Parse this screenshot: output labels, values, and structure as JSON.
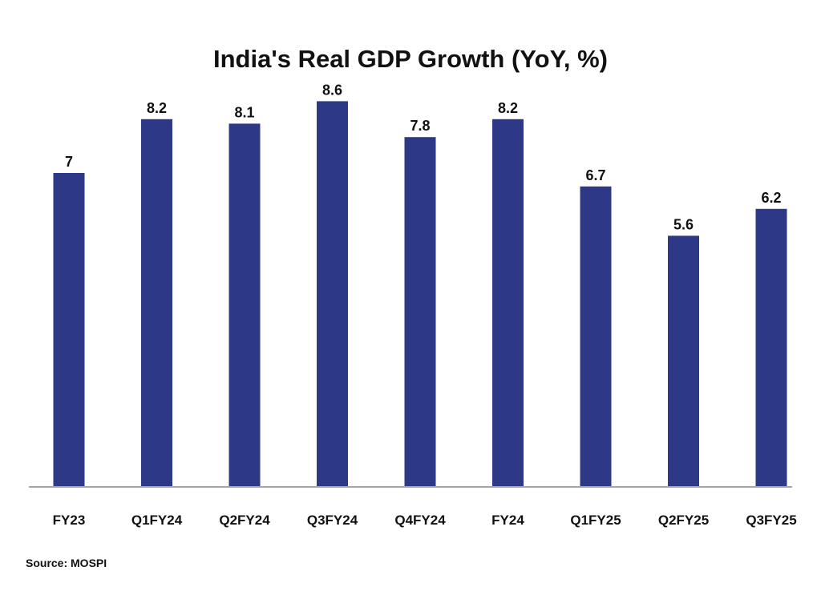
{
  "chart_data": {
    "type": "bar",
    "title": "India's Real GDP Growth (YoY, %)",
    "categories": [
      "FY23",
      "Q1FY24",
      "Q2FY24",
      "Q3FY24",
      "Q4FY24",
      "FY24",
      "Q1FY25",
      "Q2FY25",
      "Q3FY25"
    ],
    "values": [
      7,
      8.2,
      8.1,
      8.6,
      7.8,
      8.2,
      6.7,
      5.6,
      6.2
    ],
    "value_labels": [
      "7",
      "8.2",
      "8.1",
      "8.6",
      "7.8",
      "8.2",
      "6.7",
      "5.6",
      "6.2"
    ],
    "ylim": [
      0,
      10.5
    ],
    "grid": false,
    "legend": "none",
    "bar_color": "#2d3986",
    "axis_color": "#a6a6a6"
  },
  "source": "Source: MOSPI"
}
